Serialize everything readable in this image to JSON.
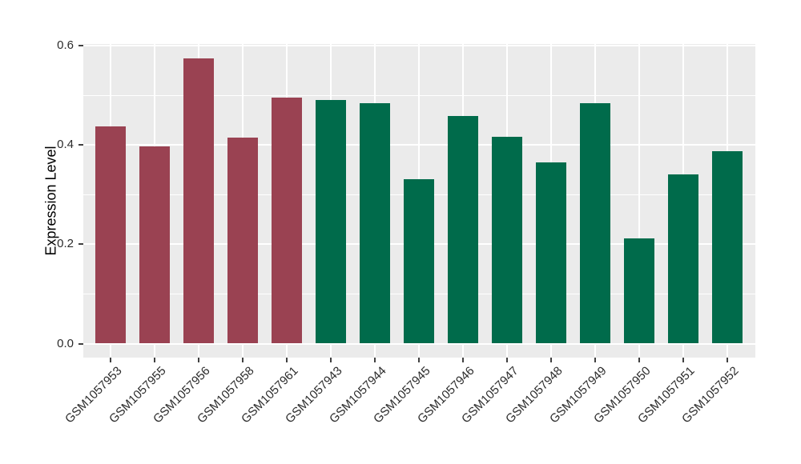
{
  "chart_data": {
    "type": "bar",
    "ylabel": "Expression Level",
    "xlabel": "",
    "ylim": [
      0,
      0.6
    ],
    "yticks": [
      0.0,
      0.2,
      0.4,
      0.6
    ],
    "ytick_labels": [
      "0.0",
      "0.2",
      "0.4",
      "0.6"
    ],
    "yticks_minor": [
      0.1,
      0.3,
      0.5
    ],
    "grid": "on",
    "legend": "none",
    "categories": [
      "GSM1057953",
      "GSM1057955",
      "GSM1057956",
      "GSM1057958",
      "GSM1057961",
      "GSM1057943",
      "GSM1057944",
      "GSM1057945",
      "GSM1057946",
      "GSM1057947",
      "GSM1057948",
      "GSM1057949",
      "GSM1057950",
      "GSM1057951",
      "GSM1057952"
    ],
    "values": [
      0.438,
      0.397,
      0.574,
      0.415,
      0.495,
      0.49,
      0.484,
      0.331,
      0.458,
      0.416,
      0.365,
      0.485,
      0.212,
      0.341,
      0.388
    ],
    "bar_groups": [
      "maroon",
      "maroon",
      "maroon",
      "maroon",
      "maroon",
      "green",
      "green",
      "green",
      "green",
      "green",
      "green",
      "green",
      "green",
      "green",
      "green"
    ],
    "colors": {
      "maroon": "#9A4252",
      "green": "#006B4B"
    },
    "panel_background": "#EBEBEB",
    "gridline_color": "#FFFFFF"
  }
}
